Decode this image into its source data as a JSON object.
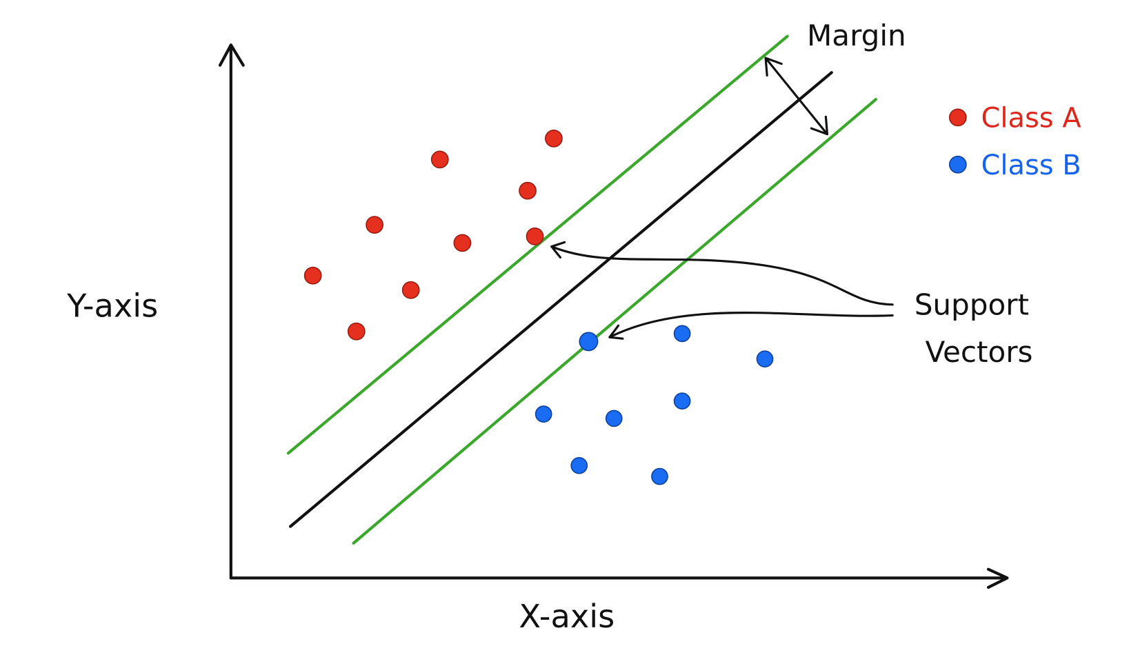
{
  "axes": {
    "x_label": "X-axis",
    "y_label": "Y-axis"
  },
  "annotations": {
    "margin": "Margin",
    "support_vectors": [
      "Support",
      "Vectors"
    ]
  },
  "legend": [
    {
      "label": "Class A"
    },
    {
      "label": "Class B"
    }
  ]
}
